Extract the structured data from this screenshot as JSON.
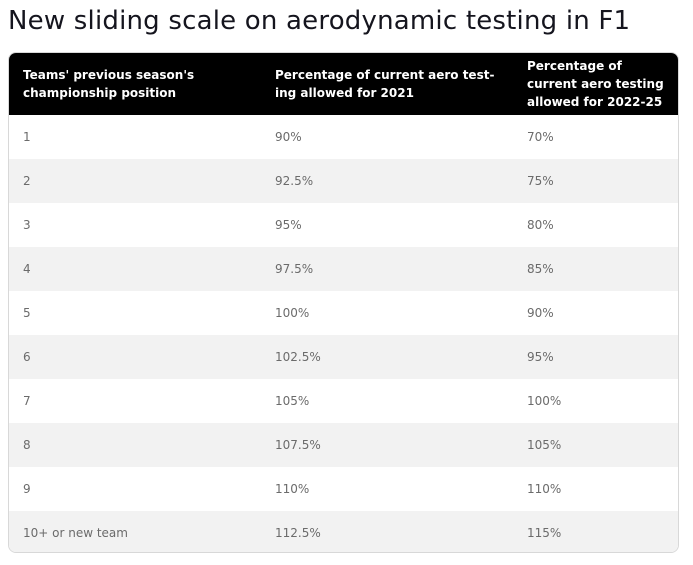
{
  "title": "New sliding scale on aerodynamic testing in F1",
  "table": {
    "headers": [
      "Teams' previous season's championship position",
      "Percentage of current aero test­ing allowed for 2021",
      "Percentage of current aero test­ing allowed for 2022-25"
    ],
    "rows": [
      [
        "1",
        "90%",
        "70%"
      ],
      [
        "2",
        "92.5%",
        "75%"
      ],
      [
        "3",
        "95%",
        "80%"
      ],
      [
        "4",
        "97.5%",
        "85%"
      ],
      [
        "5",
        "100%",
        "90%"
      ],
      [
        "6",
        "102.5%",
        "95%"
      ],
      [
        "7",
        "105%",
        "100%"
      ],
      [
        "8",
        "107.5%",
        "105%"
      ],
      [
        "9",
        "110%",
        "110%"
      ],
      [
        "10+ or new team",
        "112.5%",
        "115%"
      ]
    ]
  },
  "colors": {
    "header_bg": "#000000",
    "header_text": "#ffffff",
    "stripe_bg": "#f2f2f2",
    "cell_text": "#6b6b6b"
  }
}
